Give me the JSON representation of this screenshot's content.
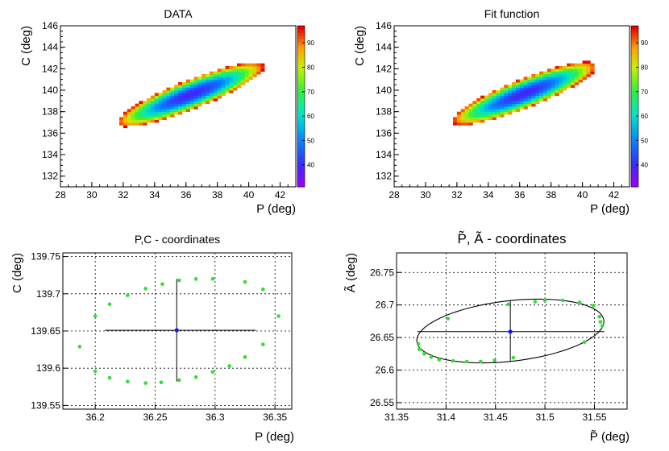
{
  "chart_data": [
    {
      "type": "heatmap",
      "title": "DATA",
      "xlabel": "P (deg)",
      "ylabel": "C (deg)",
      "xlim": [
        28,
        43
      ],
      "ylim": [
        131,
        146
      ],
      "xticks": [
        "28",
        "30",
        "32",
        "34",
        "36",
        "38",
        "40",
        "42"
      ],
      "yticks": [
        "132",
        "134",
        "136",
        "138",
        "140",
        "142",
        "144",
        "146"
      ],
      "zlim": [
        31,
        97
      ],
      "colorbar_ticks": [
        "40",
        "50",
        "60",
        "70",
        "80",
        "90"
      ],
      "ellipse": {
        "center_x": 36.3,
        "center_y": 139.6,
        "semi_major": 5.4,
        "semi_minor": 1.25,
        "angle_deg": 31
      },
      "fill": "pixelated"
    },
    {
      "type": "heatmap",
      "title": "Fit function",
      "xlabel": "P (deg)",
      "ylabel": "C (deg)",
      "xlim": [
        28,
        43
      ],
      "ylim": [
        131,
        146
      ],
      "xticks": [
        "28",
        "30",
        "32",
        "34",
        "36",
        "38",
        "40",
        "42"
      ],
      "yticks": [
        "132",
        "134",
        "136",
        "138",
        "140",
        "142",
        "144",
        "146"
      ],
      "zlim": [
        31,
        97
      ],
      "colorbar_ticks": [
        "40",
        "50",
        "60",
        "70",
        "80",
        "90"
      ],
      "ellipse": {
        "center_x": 36.3,
        "center_y": 139.7,
        "semi_major": 5.3,
        "semi_minor": 1.25,
        "angle_deg": 31
      },
      "fill": "smooth"
    },
    {
      "type": "scatter",
      "title": "P,C - coordinates",
      "xlabel": "P (deg)",
      "ylabel": "C (deg)",
      "xlim": [
        36.173,
        36.364
      ],
      "ylim": [
        139.545,
        139.755
      ],
      "xticks": [
        "36.2",
        "36.25",
        "36.3",
        "36.35"
      ],
      "yticks": [
        "139.55",
        "139.6",
        "139.65",
        "139.7",
        "139.75"
      ],
      "grid": true,
      "points": [
        [
          36.187,
          139.629
        ],
        [
          36.2,
          139.596
        ],
        [
          36.2,
          139.67
        ],
        [
          36.212,
          139.587
        ],
        [
          36.212,
          139.686
        ],
        [
          36.227,
          139.582
        ],
        [
          36.227,
          139.698
        ],
        [
          36.242,
          139.58
        ],
        [
          36.242,
          139.707
        ],
        [
          36.255,
          139.581
        ],
        [
          36.256,
          139.713
        ],
        [
          36.27,
          139.584
        ],
        [
          36.27,
          139.718
        ],
        [
          36.284,
          139.588
        ],
        [
          36.284,
          139.72
        ],
        [
          36.298,
          139.595
        ],
        [
          36.298,
          139.72
        ],
        [
          36.312,
          139.603
        ],
        [
          36.325,
          139.615
        ],
        [
          36.325,
          139.716
        ],
        [
          36.34,
          139.632
        ],
        [
          36.34,
          139.706
        ],
        [
          36.353,
          139.67
        ]
      ],
      "center": [
        36.268,
        139.651
      ],
      "err_x": [
        36.208,
        36.334
      ],
      "err_y": [
        139.582,
        139.72
      ]
    },
    {
      "type": "scatter",
      "title": "P̃, Ã - coordinates",
      "xlabel": "P̃ (deg)",
      "ylabel": "Ã (deg)",
      "xlim": [
        31.35,
        31.583
      ],
      "ylim": [
        26.54,
        26.78
      ],
      "xticks": [
        "31.35",
        "31.4",
        "31.45",
        "31.5",
        "31.55"
      ],
      "yticks": [
        "26.55",
        "26.6",
        "26.65",
        "26.7",
        "26.75"
      ],
      "grid": true,
      "points": [
        [
          31.372,
          26.64
        ],
        [
          31.373,
          26.632
        ],
        [
          31.378,
          26.625
        ],
        [
          31.385,
          26.62
        ],
        [
          31.393,
          26.616
        ],
        [
          31.402,
          26.679
        ],
        [
          31.407,
          26.614
        ],
        [
          31.421,
          26.613
        ],
        [
          31.435,
          26.613
        ],
        [
          31.449,
          26.615
        ],
        [
          31.463,
          26.701
        ],
        [
          31.468,
          26.619
        ],
        [
          31.49,
          26.705
        ],
        [
          31.5,
          26.707
        ],
        [
          31.518,
          26.707
        ],
        [
          31.535,
          26.704
        ],
        [
          31.54,
          26.643
        ],
        [
          31.549,
          26.699
        ],
        [
          31.555,
          26.682
        ],
        [
          31.556,
          26.674
        ],
        [
          31.558,
          26.668
        ]
      ],
      "center": [
        31.465,
        26.659
      ],
      "err_x": [
        31.371,
        31.56
      ],
      "err_y": [
        26.613,
        26.707
      ],
      "fit_ellipse": {
        "center_x": 31.465,
        "center_y": 26.66,
        "semi_major": 0.096,
        "semi_minor": 0.046,
        "angle_deg": 11.5
      }
    }
  ]
}
